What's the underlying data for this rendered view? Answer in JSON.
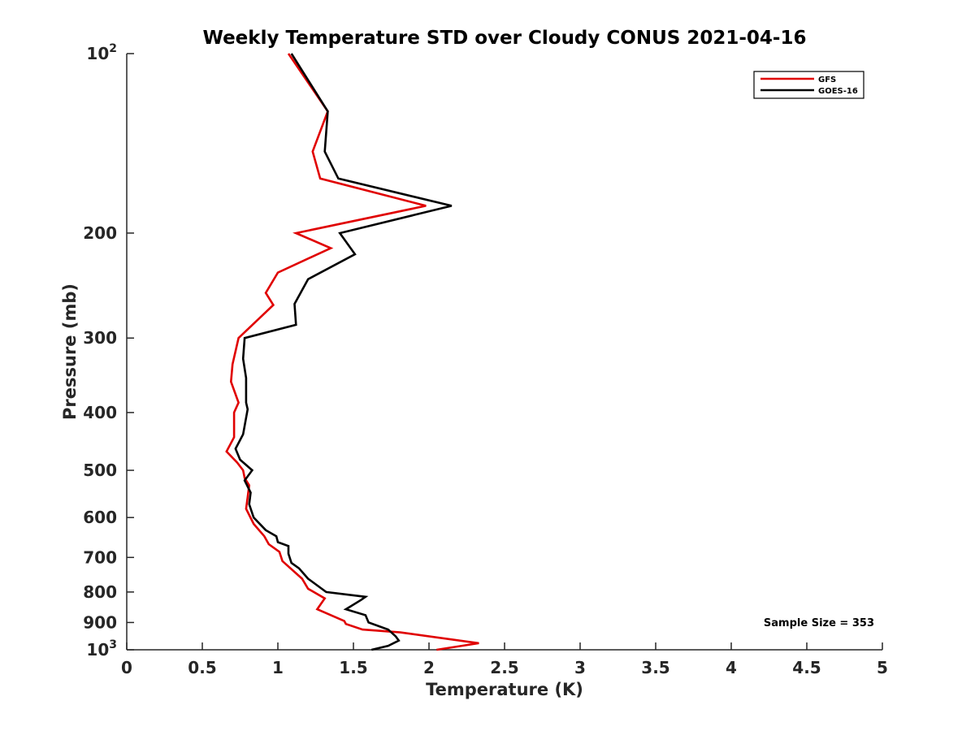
{
  "chart_data": {
    "type": "line",
    "title": "Weekly Temperature STD over Cloudy CONUS 2021-04-16",
    "xlabel": "Temperature (K)",
    "ylabel": "Pressure (mb)",
    "xlim": [
      0,
      5
    ],
    "ylim": [
      100,
      1000
    ],
    "y_scale": "log",
    "y_reversed": true,
    "grid": false,
    "legend_position": "top-right",
    "x_ticks": [
      "0",
      "0.5",
      "1",
      "1.5",
      "2",
      "2.5",
      "3",
      "3.5",
      "4",
      "4.5",
      "5"
    ],
    "y_ticks": [
      {
        "value": 100,
        "base": "10",
        "exp": "2"
      },
      {
        "value": 200,
        "label": "200"
      },
      {
        "value": 300,
        "label": "300"
      },
      {
        "value": 400,
        "label": "400"
      },
      {
        "value": 500,
        "label": "500"
      },
      {
        "value": 600,
        "label": "600"
      },
      {
        "value": 700,
        "label": "700"
      },
      {
        "value": 800,
        "label": "800"
      },
      {
        "value": 900,
        "label": "900"
      },
      {
        "value": 1000,
        "base": "10",
        "exp": "3"
      }
    ],
    "series": [
      {
        "name": "GFS",
        "color": "#e00000",
        "points": [
          [
            1.07,
            100
          ],
          [
            1.33,
            125
          ],
          [
            1.23,
            146
          ],
          [
            1.28,
            162
          ],
          [
            1.98,
            180
          ],
          [
            1.12,
            200
          ],
          [
            1.35,
            212
          ],
          [
            1.0,
            233
          ],
          [
            0.92,
            252
          ],
          [
            0.97,
            264
          ],
          [
            0.74,
            300
          ],
          [
            0.7,
            332
          ],
          [
            0.69,
            355
          ],
          [
            0.74,
            385
          ],
          [
            0.71,
            400
          ],
          [
            0.71,
            440
          ],
          [
            0.66,
            465
          ],
          [
            0.73,
            485
          ],
          [
            0.77,
            500
          ],
          [
            0.78,
            515
          ],
          [
            0.81,
            530
          ],
          [
            0.8,
            555
          ],
          [
            0.79,
            580
          ],
          [
            0.84,
            615
          ],
          [
            0.91,
            645
          ],
          [
            0.94,
            665
          ],
          [
            1.01,
            685
          ],
          [
            1.03,
            710
          ],
          [
            1.16,
            760
          ],
          [
            1.2,
            790
          ],
          [
            1.31,
            820
          ],
          [
            1.26,
            855
          ],
          [
            1.44,
            895
          ],
          [
            1.45,
            905
          ],
          [
            1.56,
            925
          ],
          [
            1.81,
            935
          ],
          [
            2.33,
            975
          ],
          [
            2.05,
            1000
          ]
        ]
      },
      {
        "name": "GOES-16",
        "color": "#000000",
        "points": [
          [
            1.09,
            100
          ],
          [
            1.33,
            125
          ],
          [
            1.31,
            146
          ],
          [
            1.4,
            162
          ],
          [
            2.15,
            180
          ],
          [
            1.41,
            200
          ],
          [
            1.51,
            217
          ],
          [
            1.2,
            239
          ],
          [
            1.11,
            263
          ],
          [
            1.12,
            285
          ],
          [
            0.78,
            300
          ],
          [
            0.77,
            325
          ],
          [
            0.79,
            350
          ],
          [
            0.79,
            385
          ],
          [
            0.8,
            395
          ],
          [
            0.77,
            435
          ],
          [
            0.72,
            460
          ],
          [
            0.75,
            480
          ],
          [
            0.83,
            500
          ],
          [
            0.78,
            520
          ],
          [
            0.82,
            545
          ],
          [
            0.81,
            570
          ],
          [
            0.84,
            600
          ],
          [
            0.92,
            630
          ],
          [
            0.99,
            645
          ],
          [
            1.0,
            660
          ],
          [
            1.07,
            670
          ],
          [
            1.07,
            690
          ],
          [
            1.09,
            715
          ],
          [
            1.14,
            730
          ],
          [
            1.2,
            760
          ],
          [
            1.32,
            800
          ],
          [
            1.58,
            815
          ],
          [
            1.55,
            825
          ],
          [
            1.45,
            855
          ],
          [
            1.58,
            875
          ],
          [
            1.6,
            900
          ],
          [
            1.73,
            925
          ],
          [
            1.78,
            950
          ],
          [
            1.8,
            965
          ],
          [
            1.73,
            985
          ],
          [
            1.62,
            1000
          ]
        ]
      }
    ],
    "annotations": [
      {
        "text": "Sample Size = 353",
        "position": "bottom-right"
      }
    ]
  }
}
